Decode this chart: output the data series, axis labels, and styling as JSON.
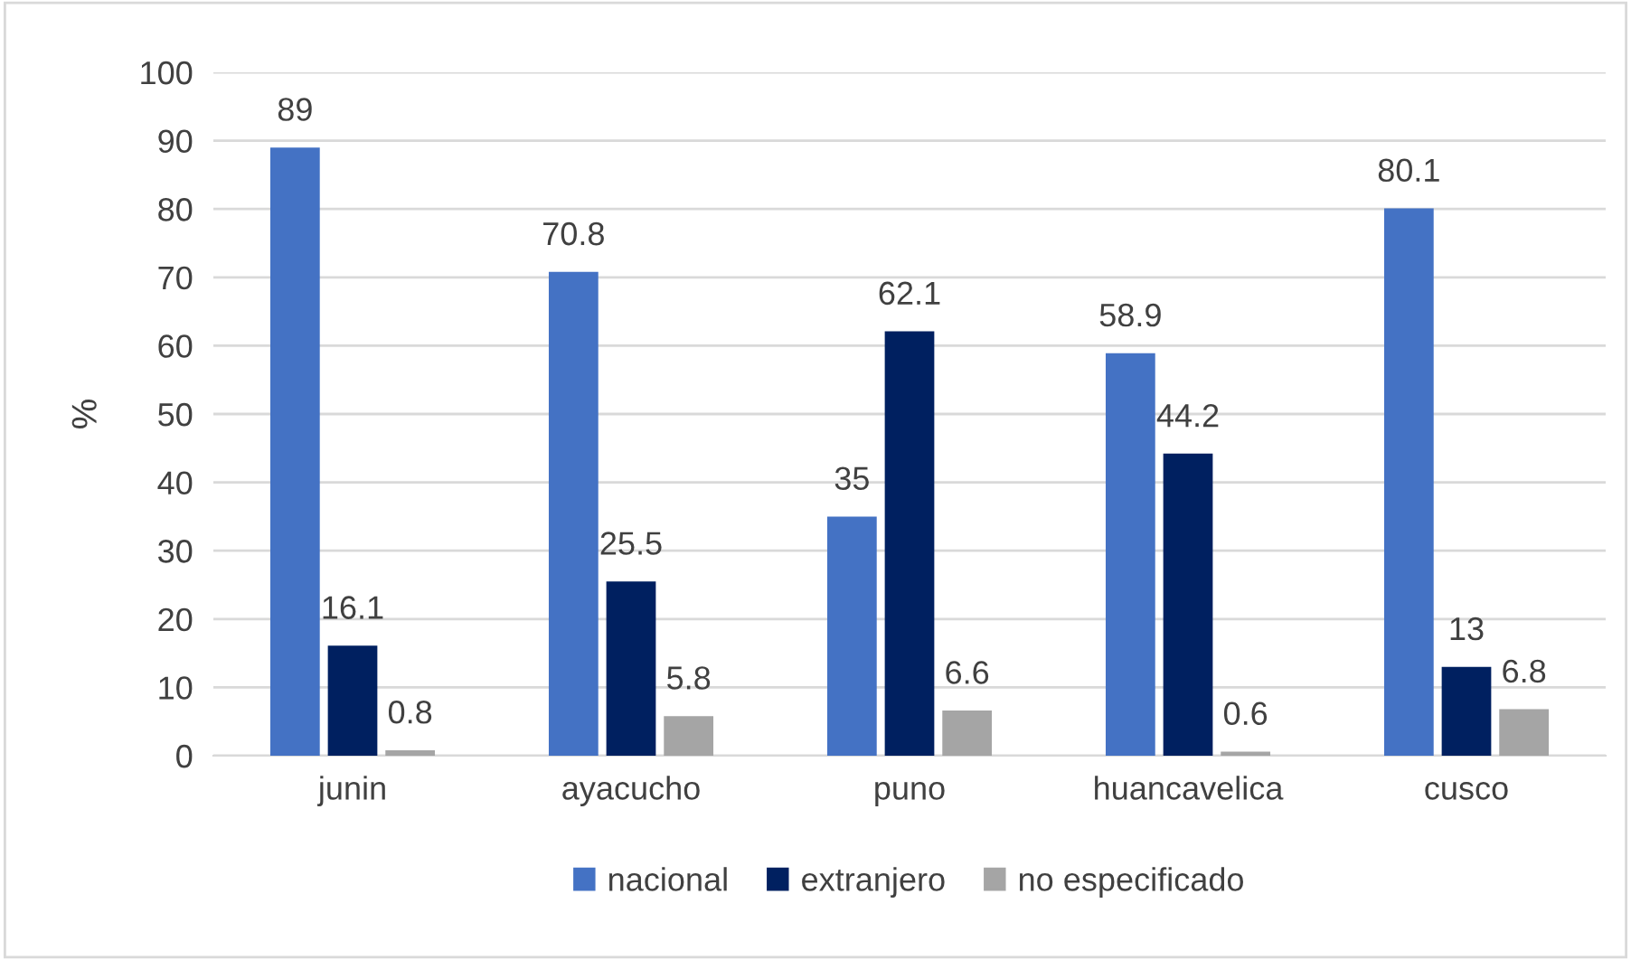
{
  "chart_data": {
    "type": "bar",
    "ylabel": "%",
    "categories": [
      "junin",
      "ayacucho",
      "puno",
      "huancavelica",
      "cusco"
    ],
    "series": [
      {
        "name": "nacional",
        "color": "#4472c4",
        "values": [
          89,
          70.8,
          35,
          58.9,
          80.1
        ]
      },
      {
        "name": "extranjero",
        "color": "#002060",
        "values": [
          16.1,
          25.5,
          62.1,
          44.2,
          13
        ]
      },
      {
        "name": "no especificado",
        "color": "#a5a5a5",
        "values": [
          0.8,
          5.8,
          6.6,
          0.6,
          6.8
        ]
      }
    ],
    "ylim": [
      0,
      100
    ],
    "yticks": [
      0,
      10,
      20,
      30,
      40,
      50,
      60,
      70,
      80,
      90,
      100
    ],
    "grid": "y",
    "legend": "bottom",
    "data_labels": true
  }
}
